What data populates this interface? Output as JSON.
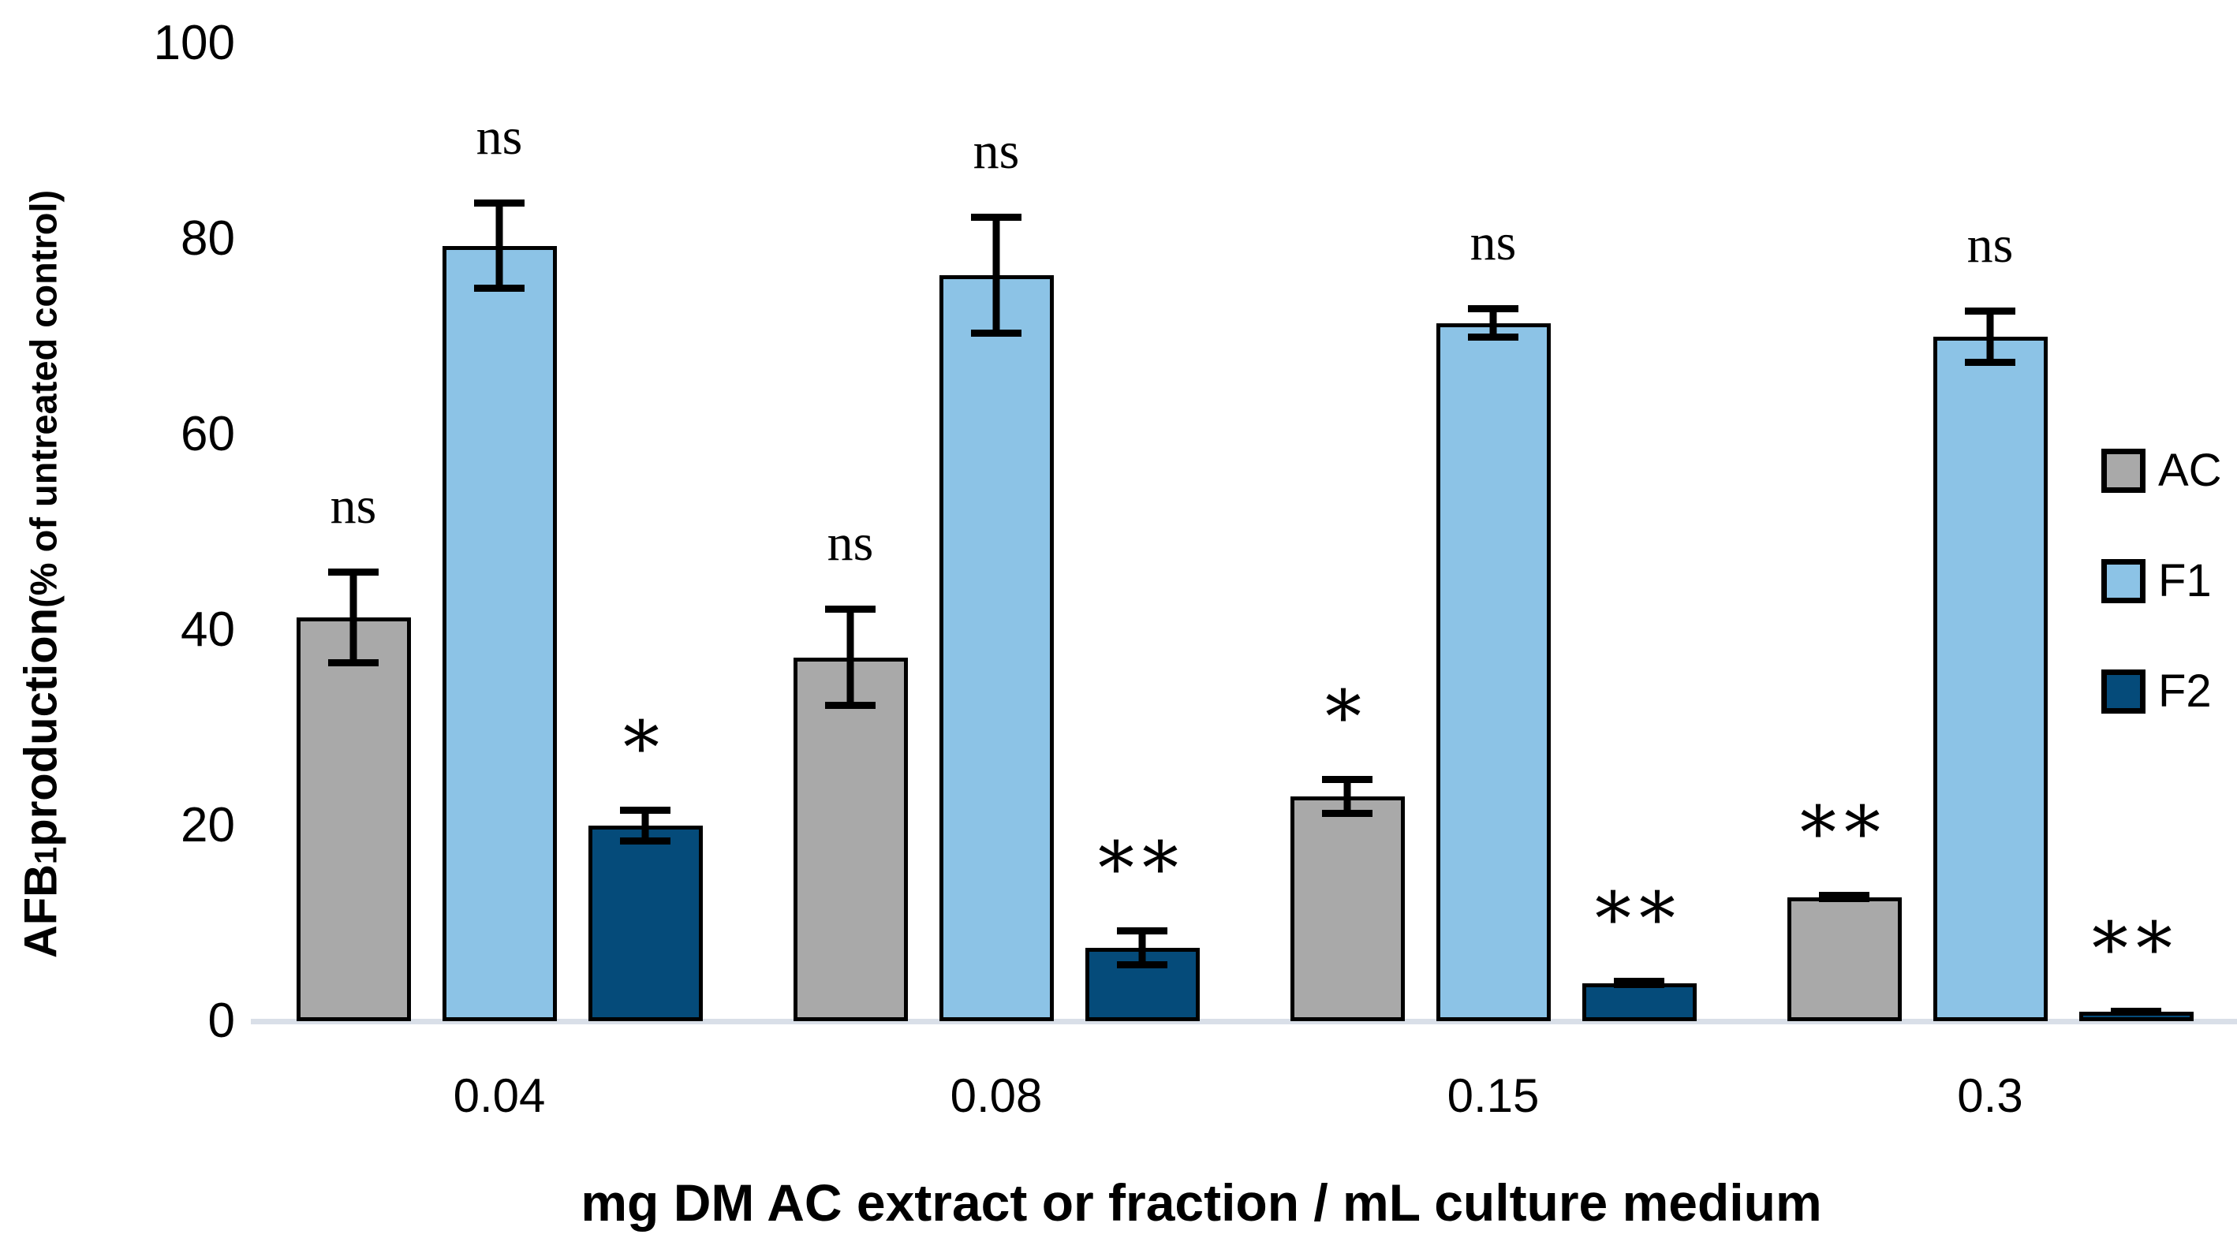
{
  "figure": {
    "y_axis_title": {
      "prefix": "AFB",
      "subscript": "1",
      "rest": " production ",
      "paren": "(% of untreated control)"
    },
    "x_axis_title": "mg DM AC extract or fraction / mL culture medium"
  },
  "chart_data": {
    "type": "bar",
    "title": "",
    "xlabel": "mg DM AC extract or fraction / mL culture medium",
    "ylabel": "AFB1 production (% of untreated control)",
    "categories": [
      "0.04",
      "0.08",
      "0.15",
      "0.3"
    ],
    "series": [
      {
        "name": "AC",
        "color": "#a9a9a9",
        "values": [
          41.3,
          37.2,
          23.0,
          12.7
        ],
        "errors": [
          5.0,
          5.3,
          2.1,
          0.5
        ],
        "significance": [
          "ns",
          "ns",
          "*",
          "**"
        ]
      },
      {
        "name": "F1",
        "color": "#8cc3e6",
        "values": [
          79.3,
          76.3,
          71.4,
          70.0
        ],
        "errors": [
          4.7,
          6.3,
          1.8,
          3.0
        ],
        "significance": [
          "ns",
          "ns",
          "ns",
          "ns"
        ]
      },
      {
        "name": "F2",
        "color": "#054b7a",
        "values": [
          20.0,
          7.5,
          3.9,
          1.0
        ],
        "errors": [
          1.9,
          2.1,
          0.5,
          0.4
        ],
        "significance": [
          "*",
          "**",
          "**",
          "**"
        ]
      }
    ],
    "y_ticks": [
      0,
      20,
      40,
      60,
      80,
      100
    ],
    "ylim": [
      0,
      100
    ],
    "legend": [
      "AC",
      "F1",
      "F2"
    ],
    "legend_position": "right",
    "grid": false,
    "baseline_color": "#d9dfe8",
    "bar_outline_color": "#000000",
    "error_bar_color": "#000000"
  }
}
